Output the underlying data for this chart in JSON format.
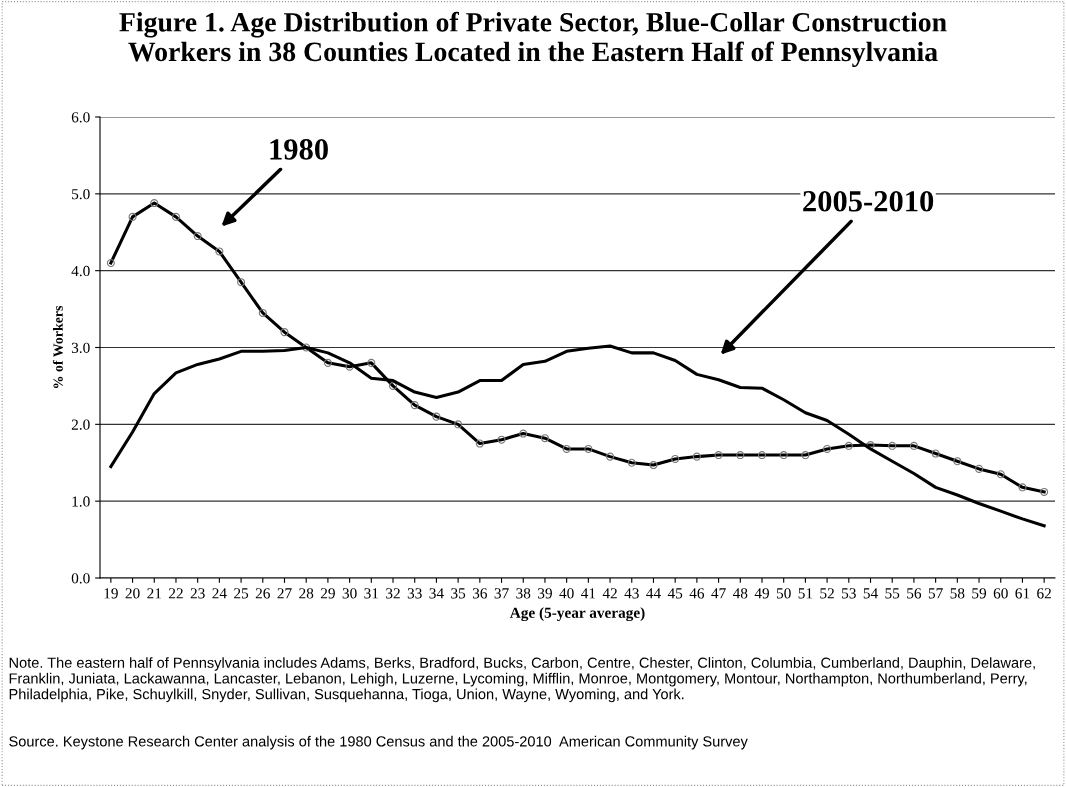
{
  "chart_data": {
    "type": "line",
    "title": "Figure 1. Age Distribution of Private Sector, Blue-Collar Construction\nWorkers in 38 Counties Located in the Eastern Half of Pennsylvania",
    "xlabel": "Age (5-year average)",
    "ylabel": "% of Workers",
    "categories": [
      "19",
      "20",
      "21",
      "22",
      "23",
      "24",
      "25",
      "26",
      "27",
      "28",
      "29",
      "30",
      "31",
      "32",
      "33",
      "34",
      "35",
      "36",
      "37",
      "38",
      "39",
      "40",
      "41",
      "42",
      "43",
      "44",
      "45",
      "46",
      "47",
      "48",
      "49",
      "50",
      "51",
      "52",
      "53",
      "54",
      "55",
      "56",
      "57",
      "58",
      "59",
      "60",
      "61",
      "62"
    ],
    "series": [
      {
        "name": "1980",
        "color": "#000000",
        "marker": "circle",
        "values": [
          4.1,
          4.7,
          4.88,
          4.7,
          4.45,
          4.25,
          3.85,
          3.45,
          3.2,
          3.0,
          2.8,
          2.75,
          2.8,
          2.5,
          2.25,
          2.1,
          2.0,
          1.75,
          1.8,
          1.88,
          1.82,
          1.68,
          1.68,
          1.58,
          1.5,
          1.47,
          1.55,
          1.58,
          1.6,
          1.6,
          1.6,
          1.6,
          1.6,
          1.68,
          1.72,
          1.73,
          1.72,
          1.72,
          1.62,
          1.52,
          1.42,
          1.35,
          1.18,
          1.12
        ]
      },
      {
        "name": "2005-2010",
        "color": "#000000",
        "marker": "none",
        "values": [
          1.45,
          1.9,
          2.4,
          2.67,
          2.78,
          2.85,
          2.95,
          2.95,
          2.96,
          3.0,
          2.93,
          2.8,
          2.6,
          2.57,
          2.42,
          2.35,
          2.42,
          2.57,
          2.57,
          2.78,
          2.82,
          2.95,
          2.99,
          3.02,
          2.93,
          2.93,
          2.83,
          2.65,
          2.58,
          2.48,
          2.47,
          2.32,
          2.15,
          2.05,
          1.87,
          1.68,
          1.52,
          1.36,
          1.18,
          1.08,
          0.97,
          0.87,
          0.77,
          0.68
        ]
      }
    ],
    "ylim": [
      0,
      6
    ],
    "yticks": [
      {
        "value": 0,
        "label": "0.0"
      },
      {
        "value": 1,
        "label": "1.0"
      },
      {
        "value": 2,
        "label": "2.0"
      },
      {
        "value": 3,
        "label": "3.0"
      },
      {
        "value": 4,
        "label": "4.0"
      },
      {
        "value": 5,
        "label": "5.0"
      },
      {
        "value": 6,
        "label": "6.0"
      }
    ],
    "grid": "y",
    "legend": false,
    "line_style": "solid",
    "annotations": [
      "Note. The eastern half of Pennsylvania includes Adams, Berks, Bradford, Bucks, Carbon, Centre, Chester, Clinton, Columbia, Cumberland, Dauphin, Delaware, Franklin, Juniata, Lackawanna, Lancaster, Lebanon, Lehigh, Luzerne, Lycoming, Mifflin, Monroe, Montgomery, Montour, Northampton, Northumberland, Perry, Philadelphia, Pike, Schuylkill, Snyder, Sullivan, Susquehanna, Tioga, Union, Wayne, Wyoming, and York.",
      "Source. Keystone Research Center analysis of the 1980 Census and the 2005-2010  American Community Survey"
    ]
  }
}
